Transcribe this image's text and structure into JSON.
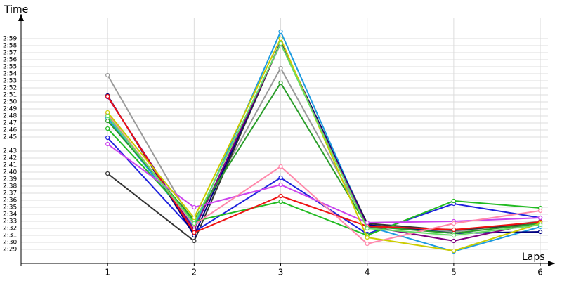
{
  "chart_data": {
    "type": "line",
    "y_label": "Time",
    "x_label": "Laps",
    "x": [
      1,
      2,
      3,
      4,
      5,
      6
    ],
    "xlim": [
      0,
      6.17
    ],
    "xticks": [
      1,
      2,
      3,
      4,
      5,
      6
    ],
    "ylim": [
      147,
      182
    ],
    "yticks": [
      {
        "value": 149,
        "label": "2:29"
      },
      {
        "value": 150,
        "label": "2:30"
      },
      {
        "value": 151,
        "label": "2:31"
      },
      {
        "value": 152,
        "label": "2:32"
      },
      {
        "value": 153,
        "label": "2:33"
      },
      {
        "value": 154,
        "label": "2:34"
      },
      {
        "value": 155,
        "label": "2:35"
      },
      {
        "value": 156,
        "label": "2:36"
      },
      {
        "value": 157,
        "label": "2:37"
      },
      {
        "value": 158,
        "label": "2:38"
      },
      {
        "value": 159,
        "label": "2:39"
      },
      {
        "value": 160,
        "label": "2:40"
      },
      {
        "value": 161,
        "label": "2:41"
      },
      {
        "value": 162,
        "label": "2:42"
      },
      {
        "value": 163,
        "label": "2:43"
      },
      {
        "value": 165,
        "label": "2:45"
      },
      {
        "value": 166,
        "label": "2:46"
      },
      {
        "value": 167,
        "label": "2:47"
      },
      {
        "value": 168,
        "label": "2:48"
      },
      {
        "value": 169,
        "label": "2:49"
      },
      {
        "value": 170,
        "label": "2:50"
      },
      {
        "value": 171,
        "label": "2:51"
      },
      {
        "value": 172,
        "label": "2:52"
      },
      {
        "value": 173,
        "label": "2:53"
      },
      {
        "value": 174,
        "label": "2:54"
      },
      {
        "value": 175,
        "label": "2:55"
      },
      {
        "value": 176,
        "label": "2:56"
      },
      {
        "value": 177,
        "label": "2:57"
      },
      {
        "value": 178,
        "label": "2:58"
      },
      {
        "value": 179,
        "label": "2:59"
      }
    ],
    "grid": true,
    "series": [
      {
        "color": "#999999",
        "values": [
          173.8,
          152.5,
          174.8,
          152.5,
          151.5,
          153
        ]
      },
      {
        "color": "#333333",
        "values": [
          159.8,
          150.2,
          178.5,
          152.7,
          151.7,
          152.7
        ]
      },
      {
        "color": "#1e22dd",
        "values": [
          164.9,
          151.5,
          159.2,
          151.2,
          155.5,
          153.5
        ]
      },
      {
        "color": "#1e9be0",
        "values": [
          167.7,
          152.2,
          180,
          152.3,
          148.7,
          152.2
        ]
      },
      {
        "color": "#000080",
        "values": [
          170.9,
          151,
          178.5,
          152.5,
          151.3,
          151.5
        ]
      },
      {
        "color": "#800080",
        "values": [
          170.7,
          151.8,
          178.3,
          152.3,
          150.2,
          152.9
        ]
      },
      {
        "color": "#22bb22",
        "values": [
          166.2,
          153,
          155.8,
          151,
          155.9,
          154.9
        ]
      },
      {
        "color": "#2a9d2a",
        "values": [
          167.3,
          153.2,
          172.7,
          152.3,
          151.3,
          152.7
        ]
      },
      {
        "color": "#ee1111",
        "values": [
          170.8,
          151.4,
          156.6,
          152.3,
          151.8,
          152.9
        ]
      },
      {
        "color": "#cc44ee",
        "values": [
          164,
          155,
          158.2,
          152.8,
          153,
          153.5
        ]
      },
      {
        "color": "#ff88aa",
        "values": [
          168.3,
          152.5,
          160.8,
          149.8,
          152.7,
          154.5
        ]
      },
      {
        "color": "#cccc00",
        "values": [
          168.5,
          153.5,
          179,
          150.7,
          148.8,
          152.7
        ]
      },
      {
        "color": "#66dd66",
        "values": [
          168,
          152.7,
          178.3,
          152,
          151,
          152.5
        ]
      }
    ]
  }
}
